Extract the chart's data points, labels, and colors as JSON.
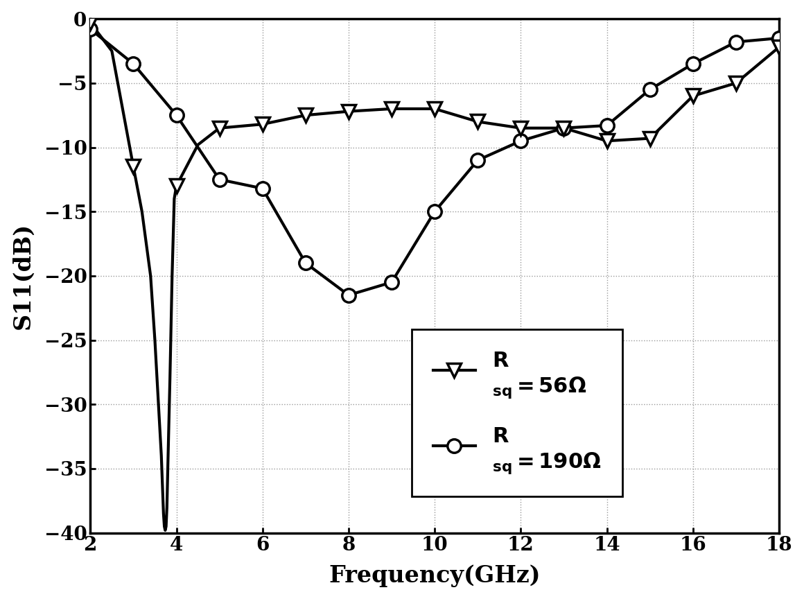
{
  "title": "",
  "xlabel": "Frequency(GHz)",
  "ylabel": "S11(dB)",
  "xlim": [
    2,
    18
  ],
  "ylim": [
    -40,
    0
  ],
  "xticks": [
    2,
    4,
    6,
    8,
    10,
    12,
    14,
    16,
    18
  ],
  "yticks": [
    0,
    -5,
    -10,
    -15,
    -20,
    -25,
    -30,
    -35,
    -40
  ],
  "grid_color": "#999999",
  "line_color": "#000000",
  "line_width": 3.0,
  "series1_x_dense": [
    2.0,
    2.5,
    3.0,
    3.2,
    3.4,
    3.5,
    3.55,
    3.6,
    3.65,
    3.7,
    3.72,
    3.74,
    3.76,
    3.78,
    3.8,
    3.85,
    3.9,
    3.95,
    4.0,
    4.5,
    5.0,
    6.0,
    7.0,
    8.0,
    9.0,
    10.0,
    11.0,
    12.0,
    13.0,
    14.0,
    15.0,
    16.0,
    17.0,
    18.0
  ],
  "series1_y_dense": [
    -0.3,
    -2.5,
    -11.5,
    -15.0,
    -20.0,
    -25.0,
    -28.0,
    -31.0,
    -34.0,
    -38.5,
    -39.5,
    -39.8,
    -39.5,
    -38.0,
    -35.0,
    -28.0,
    -20.0,
    -14.0,
    -13.0,
    -9.8,
    -8.5,
    -8.2,
    -7.5,
    -7.2,
    -7.0,
    -7.0,
    -8.0,
    -8.5,
    -8.5,
    -9.5,
    -9.3,
    -6.0,
    -5.0,
    -2.2
  ],
  "series1_marker_x": [
    2,
    3,
    4,
    5,
    6,
    7,
    8,
    9,
    10,
    11,
    12,
    13,
    14,
    15,
    16,
    17,
    18
  ],
  "series1_marker_y": [
    -0.3,
    -11.5,
    -13.0,
    -8.5,
    -8.2,
    -7.5,
    -7.2,
    -7.0,
    -7.0,
    -8.0,
    -8.5,
    -8.5,
    -9.5,
    -9.3,
    -6.0,
    -5.0,
    -2.2
  ],
  "series1_marker": "v",
  "series1_marker_size": 14,
  "series2_x": [
    2,
    3,
    4,
    5,
    6,
    7,
    8,
    9,
    10,
    11,
    12,
    13,
    14,
    15,
    16,
    17,
    18
  ],
  "series2_y": [
    -0.8,
    -3.5,
    -7.5,
    -12.5,
    -13.2,
    -19.0,
    -21.5,
    -20.5,
    -15.0,
    -11.0,
    -9.5,
    -8.5,
    -8.3,
    -5.5,
    -3.5,
    -1.8,
    -1.5
  ],
  "series2_marker": "o",
  "series2_marker_size": 14,
  "background_color": "#ffffff"
}
